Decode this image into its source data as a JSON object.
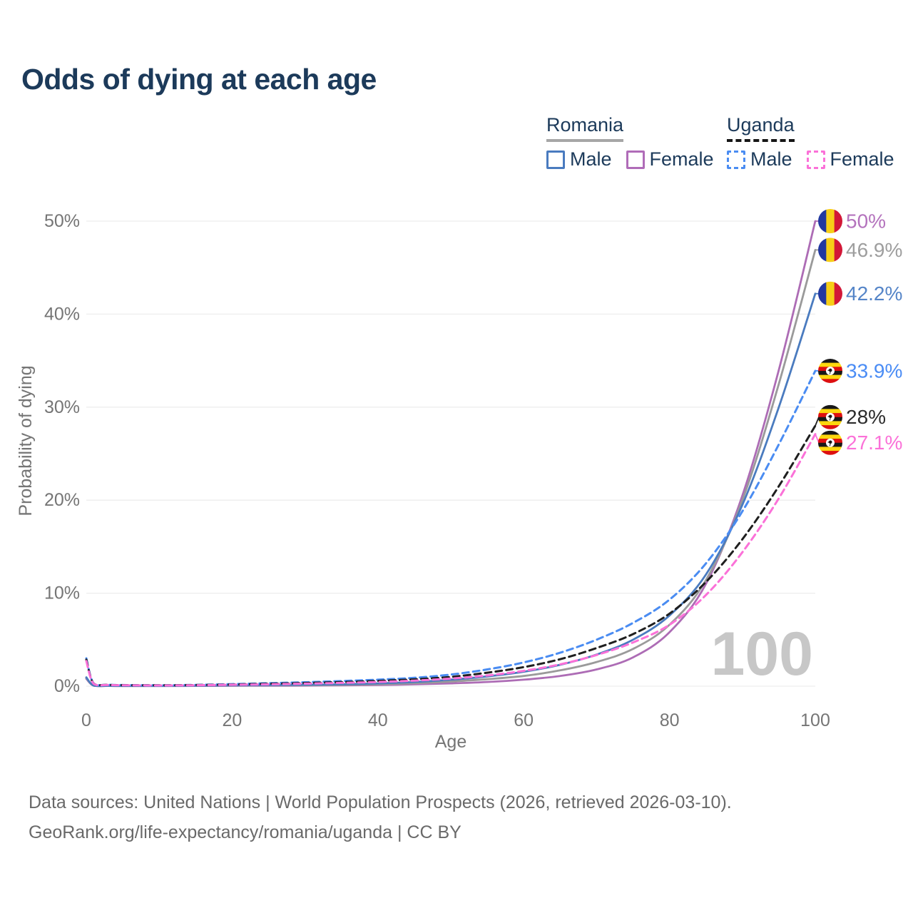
{
  "title": "Odds of dying at each age",
  "watermark": "100",
  "legend": {
    "groups": [
      {
        "name": "Romania",
        "underline": {
          "style": "solid",
          "color": "#a6a6a6"
        },
        "items": [
          {
            "label": "Male",
            "color": "#4a7bbf",
            "style": "solid"
          },
          {
            "label": "Female",
            "color": "#b06cb8",
            "style": "solid"
          }
        ]
      },
      {
        "name": "Uganda",
        "underline": {
          "style": "dashed",
          "color": "#161616"
        },
        "items": [
          {
            "label": "Male",
            "color": "#4a8cf2",
            "style": "dashed"
          },
          {
            "label": "Female",
            "color": "#fb71d8",
            "style": "dashed"
          }
        ]
      }
    ]
  },
  "chart_data": {
    "type": "line",
    "title": "Odds of dying at each age",
    "xlabel": "Age",
    "ylabel": "Probability of dying",
    "xlim": [
      0,
      100
    ],
    "ylim": [
      0,
      50
    ],
    "grid": true,
    "legend_position": "top-right",
    "axes": {
      "x_ticks": [
        "0",
        "20",
        "40",
        "60",
        "80",
        "100"
      ],
      "y_ticks": [
        "0%",
        "10%",
        "20%",
        "30%",
        "40%",
        "50%"
      ]
    },
    "x": [
      0,
      1,
      3,
      5,
      10,
      15,
      20,
      25,
      30,
      35,
      40,
      45,
      50,
      55,
      60,
      65,
      70,
      75,
      80,
      85,
      90,
      95,
      100
    ],
    "series": [
      {
        "id": "romania-female",
        "country": "Romania",
        "sex": "Female",
        "style": "solid",
        "color": "#ad6cb5",
        "label_color": "#b473bd",
        "flag": "romania",
        "end_label": "50%",
        "values": [
          0.8,
          0.06,
          0.03,
          0.02,
          0.02,
          0.03,
          0.04,
          0.05,
          0.06,
          0.09,
          0.13,
          0.2,
          0.3,
          0.45,
          0.7,
          1.1,
          1.8,
          3.1,
          5.8,
          11.0,
          20.5,
          34.0,
          50.0
        ]
      },
      {
        "id": "romania-both",
        "country": "Romania",
        "sex": "Both sexes",
        "style": "solid",
        "color": "#9a9a9a",
        "label_color": "#9e9e9e",
        "flag": "romania",
        "end_label": "46.9%",
        "values": [
          0.88,
          0.065,
          0.035,
          0.025,
          0.025,
          0.045,
          0.07,
          0.085,
          0.1,
          0.14,
          0.21,
          0.32,
          0.5,
          0.75,
          1.1,
          1.7,
          2.6,
          4.0,
          6.6,
          11.4,
          20.0,
          32.5,
          46.9
        ]
      },
      {
        "id": "romania-male",
        "country": "Romania",
        "sex": "Male",
        "style": "solid",
        "color": "#4a7bbf",
        "label_color": "#5585c8",
        "flag": "romania",
        "end_label": "42.2%",
        "values": [
          0.95,
          0.07,
          0.04,
          0.03,
          0.03,
          0.06,
          0.1,
          0.12,
          0.15,
          0.2,
          0.3,
          0.45,
          0.7,
          1.05,
          1.55,
          2.3,
          3.4,
          5.0,
          7.6,
          12.0,
          19.5,
          30.0,
          42.2
        ]
      },
      {
        "id": "uganda-male",
        "country": "Uganda",
        "sex": "Male",
        "style": "dashed",
        "color": "#4a8cf2",
        "label_color": "#4a8cf5",
        "flag": "uganda",
        "end_label": "33.9%",
        "values": [
          3.0,
          0.3,
          0.15,
          0.12,
          0.1,
          0.14,
          0.22,
          0.32,
          0.42,
          0.55,
          0.7,
          0.9,
          1.25,
          1.8,
          2.55,
          3.6,
          5.0,
          6.8,
          9.3,
          13.2,
          18.8,
          26.0,
          33.9
        ]
      },
      {
        "id": "uganda-both",
        "country": "Uganda",
        "sex": "Both sexes",
        "style": "dashed",
        "color": "#1f1f1f",
        "label_color": "#2b2b2b",
        "flag": "uganda",
        "end_label": "28%",
        "values": [
          2.85,
          0.28,
          0.14,
          0.11,
          0.09,
          0.12,
          0.18,
          0.26,
          0.34,
          0.44,
          0.56,
          0.74,
          1.0,
          1.45,
          2.05,
          2.9,
          4.1,
          5.6,
          7.8,
          11.2,
          15.8,
          21.5,
          28.0
        ]
      },
      {
        "id": "uganda-female",
        "country": "Uganda",
        "sex": "Female",
        "style": "dashed",
        "color": "#fb71d8",
        "label_color": "#fb71d8",
        "flag": "uganda",
        "end_label": "27.1%",
        "values": [
          2.7,
          0.26,
          0.13,
          0.1,
          0.08,
          0.1,
          0.15,
          0.2,
          0.27,
          0.35,
          0.45,
          0.6,
          0.82,
          1.15,
          1.65,
          2.35,
          3.35,
          4.7,
          6.6,
          9.8,
          14.4,
          20.2,
          27.1
        ]
      }
    ]
  },
  "flags": {
    "romania": {
      "colors": [
        "#2138a0",
        "#f7ce17",
        "#d21737"
      ]
    },
    "uganda": {
      "stripes": [
        "#181818",
        "#fcd70e",
        "#dd1010",
        "#181818",
        "#fcd70e",
        "#dd1010"
      ]
    }
  },
  "footer": {
    "line1": "Data sources: United Nations | World Population Prospects (2026, retrieved 2026-03-10).",
    "line2": "GeoRank.org/life-expectancy/romania/uganda | CC BY"
  }
}
